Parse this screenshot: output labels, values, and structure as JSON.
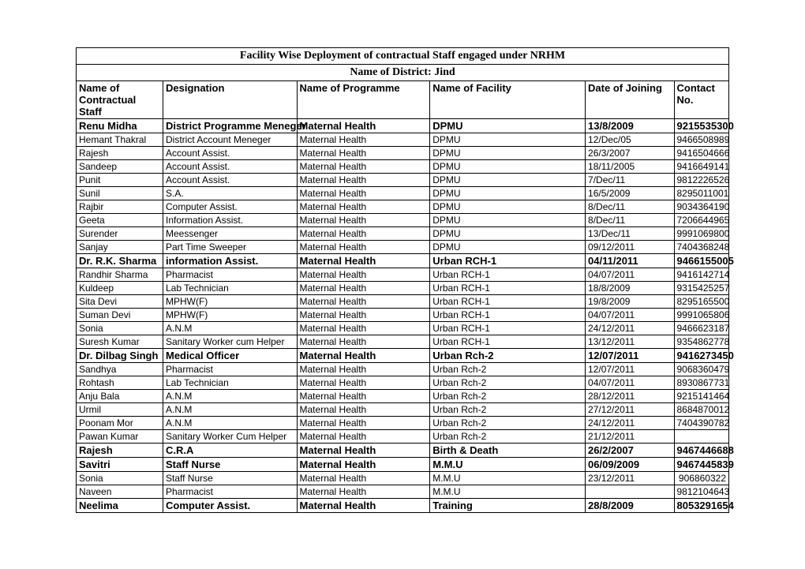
{
  "title": "Facility Wise Deployment of contractual Staff engaged under NRHM",
  "district_line": "Name of District: Jind",
  "columns": {
    "name": "Name of Contractual Staff",
    "designation": "Designation",
    "programme": "Name of Programme",
    "facility": "Name of Facility",
    "date": "Date of Joining",
    "contact": "Contact No."
  },
  "rows": [
    {
      "bold": true,
      "name": "Renu Midha",
      "designation": "District Programme Meneger",
      "programme": "Maternal Health",
      "facility": "DPMU",
      "date": "13/8/2009",
      "contact": "9215535300"
    },
    {
      "bold": false,
      "name": "Hemant Thakral",
      "designation": "District Account Meneger",
      "programme": "Maternal Health",
      "facility": "DPMU",
      "date": "12/Dec/05",
      "contact": "9466508989"
    },
    {
      "bold": false,
      "name": "Rajesh",
      "designation": "Account Assist.",
      "programme": "Maternal Health",
      "facility": "DPMU",
      "date": "26/3/2007",
      "contact": "9416504666"
    },
    {
      "bold": false,
      "name": "Sandeep",
      "designation": "Account Assist.",
      "programme": "Maternal Health",
      "facility": "DPMU",
      "date": "18/11/2005",
      "contact": "9416649141"
    },
    {
      "bold": false,
      "name": "Punit",
      "designation": "Account Assist.",
      "programme": "Maternal Health",
      "facility": "DPMU",
      "date": "7/Dec/11",
      "contact": "9812226526"
    },
    {
      "bold": false,
      "name": "Sunil",
      "designation": "S.A.",
      "programme": "Maternal Health",
      "facility": "DPMU",
      "date": "16/5/2009",
      "contact": "8295011001"
    },
    {
      "bold": false,
      "name": "Rajbir",
      "designation": "Computer Assist.",
      "programme": "Maternal Health",
      "facility": "DPMU",
      "date": "8/Dec/11",
      "contact": "9034364190"
    },
    {
      "bold": false,
      "name": "Geeta",
      "designation": "Information Assist.",
      "programme": "Maternal Health",
      "facility": "DPMU",
      "date": "8/Dec/11",
      "contact": "7206644965"
    },
    {
      "bold": false,
      "name": "Surender",
      "designation": "Meessenger",
      "programme": "Maternal Health",
      "facility": "DPMU",
      "date": "13/Dec/11",
      "contact": "9991069800"
    },
    {
      "bold": false,
      "name": "Sanjay",
      "designation": "Part Time Sweeper",
      "programme": "Maternal Health",
      "facility": "DPMU",
      "date": "09/12/2011",
      "contact": "7404368248"
    },
    {
      "bold": true,
      "name": "Dr. R.K. Sharma",
      "designation": "information Assist.",
      "programme": "Maternal Health",
      "facility": "Urban RCH-1",
      "date": "04/11/2011",
      "contact": "9466155005"
    },
    {
      "bold": false,
      "name": "Randhir Sharma",
      "designation": "Pharmacist",
      "programme": "Maternal Health",
      "facility": "Urban RCH-1",
      "date": "04/07/2011",
      "contact": "9416142714"
    },
    {
      "bold": false,
      "name": "Kuldeep",
      "designation": "Lab Technician",
      "programme": "Maternal Health",
      "facility": "Urban RCH-1",
      "date": "18/8/2009",
      "contact": "9315425257"
    },
    {
      "bold": false,
      "name": "Sita Devi",
      "designation": "MPHW(F)",
      "programme": "Maternal Health",
      "facility": "Urban RCH-1",
      "date": "19/8/2009",
      "contact": "8295165500"
    },
    {
      "bold": false,
      "name": "Suman Devi",
      "designation": "MPHW(F)",
      "programme": "Maternal Health",
      "facility": "Urban RCH-1",
      "date": "04/07/2011",
      "contact": "9991065806"
    },
    {
      "bold": false,
      "name": "Sonia",
      "designation": "A.N.M",
      "programme": "Maternal Health",
      "facility": "Urban RCH-1",
      "date": "24/12/2011",
      "contact": "9466623187"
    },
    {
      "bold": false,
      "name": "Suresh Kumar",
      "designation": "Sanitary Worker cum Helper",
      "programme": "Maternal Health",
      "facility": "Urban RCH-1",
      "date": "13/12/2011",
      "contact": "9354862778"
    },
    {
      "bold": true,
      "name": "Dr. Dilbag Singh",
      "designation": "Medical Officer",
      "programme": "Maternal Health",
      "facility": "Urban Rch-2",
      "date": "12/07/2011",
      "contact": "9416273450"
    },
    {
      "bold": false,
      "name": "Sandhya",
      "designation": "Pharmacist",
      "programme": "Maternal Health",
      "facility": "Urban Rch-2",
      "date": "12/07/2011",
      "contact": "9068360479"
    },
    {
      "bold": false,
      "name": "Rohtash",
      "designation": "Lab Technician",
      "programme": "Maternal Health",
      "facility": "Urban Rch-2",
      "date": "04/07/2011",
      "contact": "8930867731"
    },
    {
      "bold": false,
      "name": "Anju Bala",
      "designation": "A.N.M",
      "programme": "Maternal Health",
      "facility": "Urban Rch-2",
      "date": "28/12/2011",
      "contact": "9215141464"
    },
    {
      "bold": false,
      "name": "Urmil",
      "designation": "A.N.M",
      "programme": "Maternal Health",
      "facility": "Urban Rch-2",
      "date": "27/12/2011",
      "contact": "8684870012"
    },
    {
      "bold": false,
      "name": "Poonam Mor",
      "designation": "A.N.M",
      "programme": "Maternal Health",
      "facility": "Urban Rch-2",
      "date": "24/12/2011",
      "contact": "7404390782"
    },
    {
      "bold": false,
      "name": "Pawan Kumar",
      "designation": "Sanitary Worker Cum Helper",
      "programme": "Maternal Health",
      "facility": "Urban Rch-2",
      "date": "21/12/2011",
      "contact": ""
    },
    {
      "bold": true,
      "name": "Rajesh",
      "designation": "C.R.A",
      "programme": "Maternal Health",
      "facility": "Birth & Death",
      "date": "26/2/2007",
      "contact": "9467446688"
    },
    {
      "bold": true,
      "name": "Savitri",
      "designation": "Staff Nurse",
      "programme": "Maternal Health",
      "facility": "M.M.U",
      "date": "06/09/2009",
      "contact": "9467445839"
    },
    {
      "bold": false,
      "name": "Sonia",
      "designation": "Staff Nurse",
      "programme": "Maternal Health",
      "facility": "M.M.U",
      "date": "23/12/2011",
      "contact": "906860322"
    },
    {
      "bold": false,
      "name": "Naveen",
      "designation": "Pharmacist",
      "programme": "Maternal Health",
      "facility": "M.M.U",
      "date": "",
      "contact": "9812104643"
    },
    {
      "bold": true,
      "name": "Neelima",
      "designation": "Computer Assist.",
      "programme": "Maternal Health",
      "facility": "Training",
      "date": "28/8/2009",
      "contact": "8053291654"
    }
  ],
  "style": {
    "type": "table",
    "background_color": "#ffffff",
    "border_color": "#000000",
    "text_color": "#000000",
    "body_font": "Arial",
    "title_font": "Times New Roman",
    "body_fontsize_pt": 9,
    "header_fontsize_pt": 10,
    "title_fontsize_pt": 11,
    "column_widths_pct": [
      13.3,
      20.5,
      20.4,
      23.8,
      13.6,
      8.4
    ],
    "column_align": [
      "left",
      "left",
      "left",
      "left",
      "left",
      "right"
    ]
  }
}
